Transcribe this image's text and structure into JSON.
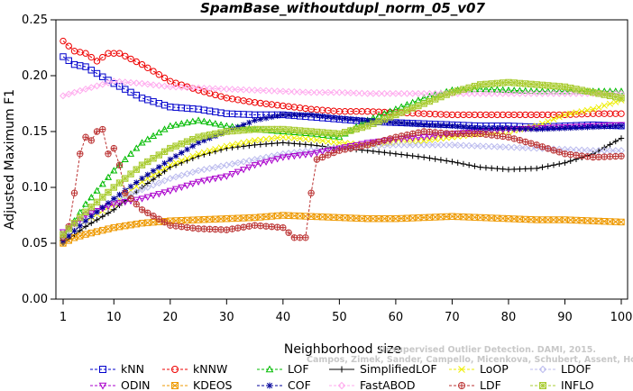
{
  "chart_data": {
    "type": "line",
    "title": "SpamBase_withoutdupl_norm_05_v07",
    "xlabel": "Neighborhood size",
    "ylabel": "Adjusted Maximum F1",
    "xlim": [
      1,
      100
    ],
    "ylim": [
      0,
      0.25
    ],
    "xticks": [
      "1",
      "10",
      "20",
      "30",
      "40",
      "50",
      "60",
      "70",
      "80",
      "90",
      "100"
    ],
    "yticks": [
      "0.00",
      "0.05",
      "0.10",
      "0.15",
      "0.20",
      "0.25"
    ],
    "grid": false,
    "legend_position": "bottom",
    "credit": "Campos, Zimek, Sander, Campello, Micenkova, Schubert, Assent, Houle: On the Evaluation of Unsupervised Outlier Detection. DAMI, 2015.",
    "credit_lines": [
      "Unsupervised Outlier Detection. DAMI, 2015.",
      "Campos, Zimek, Sander, Campello, Micenkova, Schubert, Assent, Houle"
    ],
    "series": [
      {
        "name": "kNN",
        "color": "#0000cc",
        "marker": "square",
        "points": [
          [
            1,
            0.217
          ],
          [
            3,
            0.21
          ],
          [
            5,
            0.208
          ],
          [
            10,
            0.193
          ],
          [
            15,
            0.18
          ],
          [
            20,
            0.172
          ],
          [
            25,
            0.17
          ],
          [
            30,
            0.166
          ],
          [
            35,
            0.165
          ],
          [
            40,
            0.165
          ],
          [
            45,
            0.163
          ],
          [
            50,
            0.161
          ],
          [
            55,
            0.159
          ],
          [
            60,
            0.158
          ],
          [
            65,
            0.157
          ],
          [
            70,
            0.156
          ],
          [
            75,
            0.155
          ],
          [
            80,
            0.155
          ],
          [
            85,
            0.154
          ],
          [
            90,
            0.155
          ],
          [
            95,
            0.156
          ],
          [
            100,
            0.155
          ]
        ]
      },
      {
        "name": "kNNW",
        "color": "#ee0000",
        "marker": "circle",
        "points": [
          [
            1,
            0.231
          ],
          [
            3,
            0.222
          ],
          [
            5,
            0.22
          ],
          [
            7,
            0.213
          ],
          [
            9,
            0.22
          ],
          [
            11,
            0.22
          ],
          [
            15,
            0.21
          ],
          [
            20,
            0.195
          ],
          [
            25,
            0.187
          ],
          [
            30,
            0.18
          ],
          [
            35,
            0.176
          ],
          [
            40,
            0.173
          ],
          [
            45,
            0.17
          ],
          [
            50,
            0.168
          ],
          [
            55,
            0.168
          ],
          [
            60,
            0.167
          ],
          [
            65,
            0.166
          ],
          [
            70,
            0.165
          ],
          [
            75,
            0.165
          ],
          [
            80,
            0.165
          ],
          [
            85,
            0.165
          ],
          [
            90,
            0.165
          ],
          [
            95,
            0.166
          ],
          [
            100,
            0.166
          ]
        ]
      },
      {
        "name": "LOF",
        "color": "#00bb00",
        "marker": "triangle-up",
        "points": [
          [
            1,
            0.055
          ],
          [
            5,
            0.085
          ],
          [
            10,
            0.115
          ],
          [
            15,
            0.14
          ],
          [
            20,
            0.155
          ],
          [
            25,
            0.16
          ],
          [
            30,
            0.155
          ],
          [
            35,
            0.152
          ],
          [
            40,
            0.15
          ],
          [
            45,
            0.148
          ],
          [
            50,
            0.145
          ],
          [
            55,
            0.16
          ],
          [
            60,
            0.17
          ],
          [
            65,
            0.18
          ],
          [
            70,
            0.187
          ],
          [
            75,
            0.188
          ],
          [
            80,
            0.187
          ],
          [
            85,
            0.186
          ],
          [
            90,
            0.186
          ],
          [
            95,
            0.186
          ],
          [
            100,
            0.186
          ]
        ]
      },
      {
        "name": "SimplifiedLOF",
        "color": "#000000",
        "marker": "plus",
        "points": [
          [
            1,
            0.05
          ],
          [
            5,
            0.065
          ],
          [
            10,
            0.08
          ],
          [
            15,
            0.1
          ],
          [
            20,
            0.118
          ],
          [
            25,
            0.128
          ],
          [
            30,
            0.135
          ],
          [
            35,
            0.138
          ],
          [
            40,
            0.14
          ],
          [
            45,
            0.138
          ],
          [
            50,
            0.135
          ],
          [
            55,
            0.133
          ],
          [
            60,
            0.13
          ],
          [
            65,
            0.127
          ],
          [
            70,
            0.123
          ],
          [
            75,
            0.118
          ],
          [
            80,
            0.116
          ],
          [
            85,
            0.117
          ],
          [
            90,
            0.122
          ],
          [
            95,
            0.13
          ],
          [
            100,
            0.144
          ]
        ]
      },
      {
        "name": "LoOP",
        "color": "#eeee00",
        "marker": "x",
        "points": [
          [
            1,
            0.052
          ],
          [
            5,
            0.07
          ],
          [
            10,
            0.085
          ],
          [
            15,
            0.105
          ],
          [
            20,
            0.12
          ],
          [
            25,
            0.13
          ],
          [
            30,
            0.137
          ],
          [
            35,
            0.142
          ],
          [
            40,
            0.145
          ],
          [
            45,
            0.143
          ],
          [
            50,
            0.14
          ],
          [
            55,
            0.138
          ],
          [
            60,
            0.14
          ],
          [
            65,
            0.142
          ],
          [
            70,
            0.145
          ],
          [
            75,
            0.148
          ],
          [
            80,
            0.15
          ],
          [
            85,
            0.155
          ],
          [
            90,
            0.165
          ],
          [
            95,
            0.17
          ],
          [
            100,
            0.178
          ]
        ]
      },
      {
        "name": "LDOF",
        "color": "#bbbbee",
        "marker": "diamond",
        "points": [
          [
            1,
            0.058
          ],
          [
            5,
            0.072
          ],
          [
            10,
            0.088
          ],
          [
            15,
            0.098
          ],
          [
            20,
            0.108
          ],
          [
            25,
            0.115
          ],
          [
            30,
            0.12
          ],
          [
            35,
            0.125
          ],
          [
            40,
            0.13
          ],
          [
            45,
            0.133
          ],
          [
            50,
            0.135
          ],
          [
            55,
            0.137
          ],
          [
            60,
            0.138
          ],
          [
            65,
            0.138
          ],
          [
            70,
            0.138
          ],
          [
            75,
            0.137
          ],
          [
            80,
            0.136
          ],
          [
            85,
            0.135
          ],
          [
            90,
            0.134
          ],
          [
            95,
            0.133
          ],
          [
            100,
            0.133
          ]
        ]
      },
      {
        "name": "ODIN",
        "color": "#aa00cc",
        "marker": "triangle-down",
        "points": [
          [
            1,
            0.06
          ],
          [
            5,
            0.075
          ],
          [
            10,
            0.085
          ],
          [
            15,
            0.09
          ],
          [
            20,
            0.097
          ],
          [
            25,
            0.105
          ],
          [
            30,
            0.11
          ],
          [
            35,
            0.12
          ],
          [
            40,
            0.127
          ],
          [
            45,
            0.13
          ],
          [
            50,
            0.135
          ],
          [
            55,
            0.14
          ],
          [
            60,
            0.143
          ],
          [
            65,
            0.145
          ],
          [
            70,
            0.148
          ],
          [
            75,
            0.15
          ],
          [
            80,
            0.152
          ],
          [
            85,
            0.153
          ],
          [
            90,
            0.154
          ],
          [
            95,
            0.155
          ],
          [
            100,
            0.156
          ]
        ]
      },
      {
        "name": "KDEOS",
        "color": "#ee9900",
        "marker": "square-x",
        "points": [
          [
            1,
            0.05
          ],
          [
            3,
            0.055
          ],
          [
            5,
            0.058
          ],
          [
            10,
            0.064
          ],
          [
            15,
            0.068
          ],
          [
            20,
            0.07
          ],
          [
            25,
            0.071
          ],
          [
            30,
            0.072
          ],
          [
            35,
            0.073
          ],
          [
            40,
            0.075
          ],
          [
            45,
            0.074
          ],
          [
            50,
            0.073
          ],
          [
            55,
            0.072
          ],
          [
            60,
            0.072
          ],
          [
            65,
            0.073
          ],
          [
            70,
            0.074
          ],
          [
            75,
            0.073
          ],
          [
            80,
            0.072
          ],
          [
            85,
            0.071
          ],
          [
            90,
            0.071
          ],
          [
            95,
            0.07
          ],
          [
            100,
            0.069
          ]
        ]
      },
      {
        "name": "COF",
        "color": "#000099",
        "marker": "star",
        "points": [
          [
            1,
            0.052
          ],
          [
            5,
            0.07
          ],
          [
            10,
            0.09
          ],
          [
            15,
            0.108
          ],
          [
            20,
            0.125
          ],
          [
            25,
            0.14
          ],
          [
            30,
            0.15
          ],
          [
            35,
            0.16
          ],
          [
            40,
            0.165
          ],
          [
            45,
            0.165
          ],
          [
            50,
            0.162
          ],
          [
            55,
            0.16
          ],
          [
            60,
            0.158
          ],
          [
            65,
            0.156
          ],
          [
            70,
            0.155
          ],
          [
            75,
            0.153
          ],
          [
            80,
            0.153
          ],
          [
            85,
            0.152
          ],
          [
            90,
            0.153
          ],
          [
            95,
            0.154
          ],
          [
            100,
            0.155
          ]
        ]
      },
      {
        "name": "FastABOD",
        "color": "#ffaaee",
        "marker": "diamond",
        "points": [
          [
            1,
            0.182
          ],
          [
            5,
            0.188
          ],
          [
            10,
            0.195
          ],
          [
            15,
            0.193
          ],
          [
            20,
            0.19
          ],
          [
            25,
            0.189
          ],
          [
            30,
            0.188
          ],
          [
            35,
            0.187
          ],
          [
            40,
            0.186
          ],
          [
            45,
            0.185
          ],
          [
            50,
            0.185
          ],
          [
            55,
            0.184
          ],
          [
            60,
            0.184
          ],
          [
            65,
            0.184
          ],
          [
            70,
            0.184
          ],
          [
            75,
            0.184
          ],
          [
            80,
            0.184
          ],
          [
            85,
            0.184
          ],
          [
            90,
            0.184
          ],
          [
            95,
            0.184
          ],
          [
            100,
            0.184
          ]
        ]
      },
      {
        "name": "LDF",
        "color": "#bb3333",
        "marker": "circle-plus",
        "points": [
          [
            1,
            0.055
          ],
          [
            2,
            0.065
          ],
          [
            3,
            0.095
          ],
          [
            4,
            0.13
          ],
          [
            5,
            0.145
          ],
          [
            6,
            0.142
          ],
          [
            7,
            0.15
          ],
          [
            8,
            0.152
          ],
          [
            9,
            0.13
          ],
          [
            10,
            0.135
          ],
          [
            11,
            0.12
          ],
          [
            12,
            0.095
          ],
          [
            15,
            0.08
          ],
          [
            20,
            0.066
          ],
          [
            25,
            0.063
          ],
          [
            30,
            0.062
          ],
          [
            35,
            0.066
          ],
          [
            40,
            0.064
          ],
          [
            42,
            0.055
          ],
          [
            44,
            0.055
          ],
          [
            45,
            0.095
          ],
          [
            46,
            0.125
          ],
          [
            50,
            0.133
          ],
          [
            55,
            0.138
          ],
          [
            60,
            0.145
          ],
          [
            65,
            0.15
          ],
          [
            70,
            0.148
          ],
          [
            75,
            0.148
          ],
          [
            80,
            0.145
          ],
          [
            85,
            0.138
          ],
          [
            90,
            0.13
          ],
          [
            95,
            0.127
          ],
          [
            100,
            0.128
          ]
        ]
      },
      {
        "name": "INFLO",
        "color": "#aacc33",
        "marker": "square-star",
        "points": [
          [
            1,
            0.058
          ],
          [
            5,
            0.078
          ],
          [
            10,
            0.1
          ],
          [
            15,
            0.12
          ],
          [
            20,
            0.135
          ],
          [
            25,
            0.145
          ],
          [
            30,
            0.15
          ],
          [
            35,
            0.152
          ],
          [
            40,
            0.152
          ],
          [
            45,
            0.15
          ],
          [
            50,
            0.148
          ],
          [
            55,
            0.155
          ],
          [
            60,
            0.165
          ],
          [
            65,
            0.175
          ],
          [
            70,
            0.185
          ],
          [
            75,
            0.192
          ],
          [
            80,
            0.194
          ],
          [
            85,
            0.192
          ],
          [
            90,
            0.19
          ],
          [
            95,
            0.185
          ],
          [
            100,
            0.18
          ]
        ]
      }
    ]
  }
}
